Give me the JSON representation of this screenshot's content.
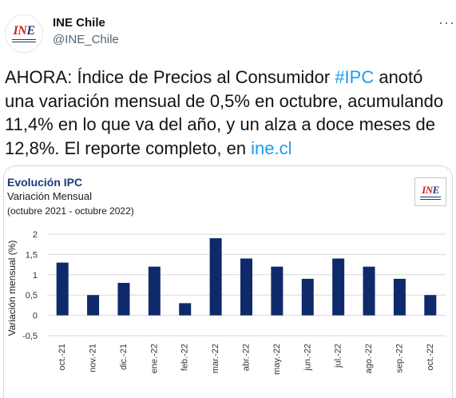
{
  "account": {
    "name": "INE Chile",
    "handle": "@INE_Chile",
    "logo": "INE",
    "more_icon": "more-icon"
  },
  "tweet": {
    "text_before": "AHORA: Índice de Precios al Consumidor ",
    "hashtag": "#IPC",
    "text_middle": " anotó una variación mensual de 0,5% en octubre, acumulando 11,4% en lo que va del año, y un alza a doce meses de 12,8%. El reporte completo, en ",
    "link": "ine.cl"
  },
  "colors": {
    "bar": "#0f2a6b",
    "link": "#1d9bf0",
    "title": "#1d3a7a"
  },
  "chart_data": {
    "type": "bar",
    "title": "Evolución IPC",
    "subtitle": "Variación Mensual",
    "period": "(octubre 2021 - octubre 2022)",
    "ylabel": "Variación mensual (%)",
    "xlabel": "",
    "categories": [
      "oct.-21",
      "nov.-21",
      "dic.-21",
      "ene.-22",
      "feb.-22",
      "mar.-22",
      "abr.-22",
      "may.-22",
      "jun.-22",
      "jul.-22",
      "ago.-22",
      "sep.-22",
      "oct.-22"
    ],
    "values": [
      1.3,
      0.5,
      0.8,
      1.2,
      0.3,
      1.9,
      1.4,
      1.2,
      0.9,
      1.4,
      1.2,
      0.9,
      0.5
    ],
    "ylim": [
      -0.5,
      2
    ],
    "yticks": [
      2,
      1.5,
      1,
      0.5,
      0,
      -0.5
    ],
    "ytick_labels": [
      "2",
      "1,5",
      "1",
      "0,5",
      "0",
      "-0,5"
    ],
    "grid": true,
    "legend": "none"
  }
}
